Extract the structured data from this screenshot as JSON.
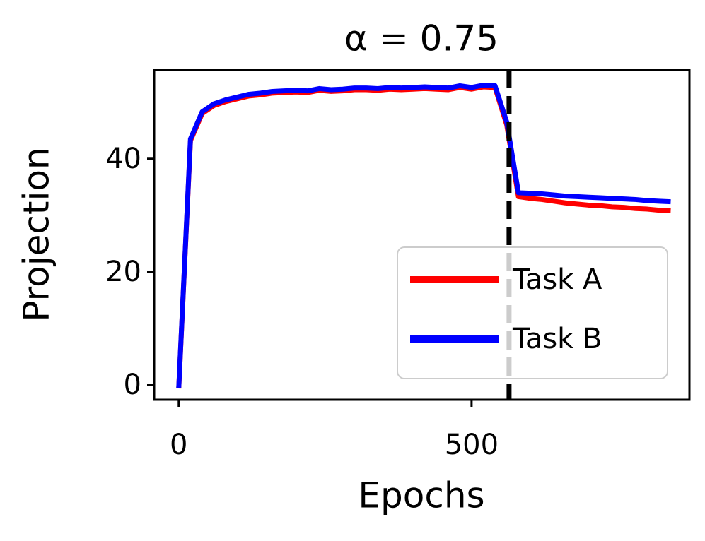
{
  "chart_data": {
    "type": "line",
    "title": "α = 0.75",
    "x_label": "Epochs",
    "y_label": "Projection",
    "x": [
      0,
      20,
      40,
      60,
      80,
      100,
      120,
      140,
      160,
      180,
      200,
      220,
      240,
      260,
      280,
      300,
      320,
      340,
      360,
      380,
      400,
      420,
      440,
      460,
      480,
      500,
      520,
      540,
      560,
      580,
      600,
      620,
      640,
      660,
      680,
      700,
      720,
      740,
      760,
      780,
      800,
      820,
      840
    ],
    "series": [
      {
        "name": "Task A",
        "color": "#ff0000",
        "values": [
          -0.6,
          43.2,
          48.0,
          49.4,
          50.1,
          50.6,
          51.1,
          51.3,
          51.6,
          51.7,
          51.8,
          51.7,
          52.1,
          51.9,
          52.0,
          52.2,
          52.2,
          52.1,
          52.3,
          52.2,
          52.3,
          52.4,
          52.3,
          52.2,
          52.6,
          52.3,
          52.7,
          52.6,
          46.0,
          33.3,
          33.0,
          32.8,
          32.5,
          32.2,
          32.0,
          31.8,
          31.7,
          31.5,
          31.4,
          31.2,
          31.1,
          30.9,
          30.8
        ]
      },
      {
        "name": "Task B",
        "color": "#0000ff",
        "values": [
          -0.5,
          43.5,
          48.3,
          49.7,
          50.4,
          50.9,
          51.4,
          51.6,
          51.9,
          52.0,
          52.1,
          52.0,
          52.4,
          52.2,
          52.3,
          52.5,
          52.5,
          52.4,
          52.6,
          52.5,
          52.6,
          52.7,
          52.6,
          52.5,
          52.9,
          52.6,
          53.0,
          52.9,
          46.5,
          34.0,
          33.9,
          33.8,
          33.6,
          33.4,
          33.3,
          33.2,
          33.1,
          33.0,
          32.9,
          32.8,
          32.6,
          32.5,
          32.4
        ]
      }
    ],
    "xlim": [
      -42,
      872
    ],
    "ylim": [
      -2.6,
      55.7
    ],
    "xticks": [
      0,
      500
    ],
    "yticks": [
      0,
      20,
      40
    ],
    "vline_x": 564,
    "legend": "lower right"
  }
}
